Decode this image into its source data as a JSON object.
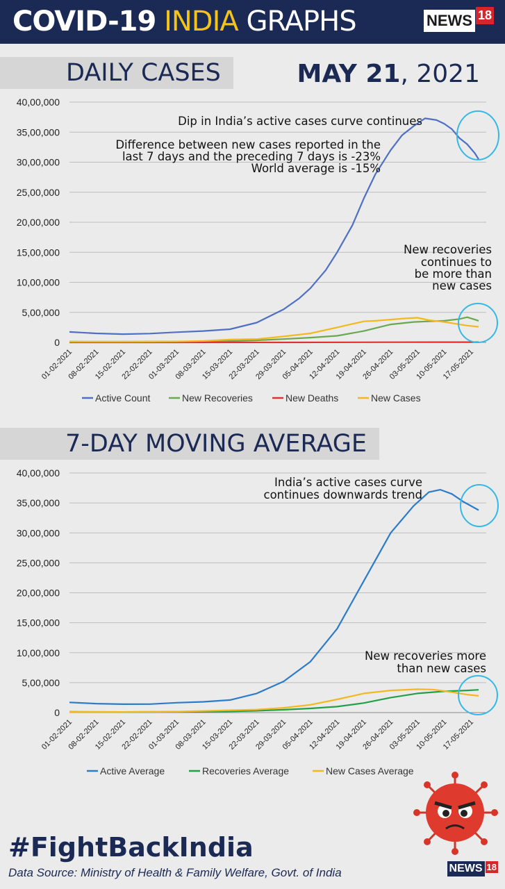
{
  "header": {
    "title_part1": "COVID-19",
    "title_part2": "INDIA",
    "title_part3": "GRAPHS",
    "logo_text": "NEWS",
    "logo_num": "18"
  },
  "date": {
    "bold": "MAY 21",
    "rest": ", 2021"
  },
  "footer": {
    "hashtag": "#FightBackIndia",
    "source": "Data Source:  Ministry of Health & Family Welfare, Govt. of India"
  },
  "colors": {
    "navy": "#1a2a55",
    "yellow": "#f2c318",
    "red": "#d4262b",
    "cyan": "#35b8e6"
  },
  "chart_data": [
    {
      "type": "line",
      "title": "DAILY CASES",
      "ylim": [
        0,
        4000000
      ],
      "yticks": [
        "0",
        "5,00,000",
        "10,00,000",
        "15,00,000",
        "20,00,000",
        "25,00,000",
        "30,00,000",
        "35,00,000",
        "40,00,000"
      ],
      "x_ticks": [
        "01-02-2021",
        "08-02-2021",
        "15-02-2021",
        "22-02-2021",
        "01-03-2021",
        "08-03-2021",
        "15-03-2021",
        "22-03-2021",
        "29-03-2021",
        "05-04-2021",
        "12-04-2021",
        "19-04-2021",
        "26-04-2021",
        "03-05-2021",
        "10-05-2021",
        "17-05-2021"
      ],
      "x_day_range": [
        0,
        109
      ],
      "grid": true,
      "legend": "bottom",
      "series": [
        {
          "name": "Active Count",
          "color": "#4e6fc4",
          "points": [
            [
              0,
              175000
            ],
            [
              7,
              150000
            ],
            [
              14,
              138000
            ],
            [
              21,
              147000
            ],
            [
              28,
              170000
            ],
            [
              35,
              190000
            ],
            [
              42,
              220000
            ],
            [
              49,
              330000
            ],
            [
              56,
              550000
            ],
            [
              60,
              730000
            ],
            [
              63,
              900000
            ],
            [
              67,
              1200000
            ],
            [
              70,
              1500000
            ],
            [
              74,
              1950000
            ],
            [
              77,
              2400000
            ],
            [
              80,
              2800000
            ],
            [
              84,
              3200000
            ],
            [
              87,
              3450000
            ],
            [
              90,
              3600000
            ],
            [
              93,
              3730000
            ],
            [
              96,
              3700000
            ],
            [
              98,
              3640000
            ],
            [
              100,
              3550000
            ],
            [
              102,
              3400000
            ],
            [
              104,
              3300000
            ],
            [
              106,
              3150000
            ],
            [
              107,
              3050000
            ]
          ]
        },
        {
          "name": "New Recoveries",
          "color": "#6aa84f",
          "points": [
            [
              0,
              13000
            ],
            [
              14,
              11000
            ],
            [
              28,
              14000
            ],
            [
              42,
              22000
            ],
            [
              49,
              35000
            ],
            [
              56,
              55000
            ],
            [
              63,
              80000
            ],
            [
              70,
              110000
            ],
            [
              77,
              190000
            ],
            [
              84,
              300000
            ],
            [
              90,
              340000
            ],
            [
              94,
              350000
            ],
            [
              98,
              360000
            ],
            [
              102,
              390000
            ],
            [
              104,
              420000
            ],
            [
              106,
              380000
            ],
            [
              107,
              360000
            ]
          ]
        },
        {
          "name": "New Deaths",
          "color": "#e03030",
          "points": [
            [
              0,
              100
            ],
            [
              28,
              120
            ],
            [
              56,
              500
            ],
            [
              84,
              3500
            ],
            [
              107,
              4200
            ]
          ]
        },
        {
          "name": "New Cases",
          "color": "#f4b81e",
          "points": [
            [
              0,
              11000
            ],
            [
              14,
              11500
            ],
            [
              21,
              13000
            ],
            [
              28,
              15000
            ],
            [
              35,
              24000
            ],
            [
              42,
              47000
            ],
            [
              49,
              55000
            ],
            [
              56,
              100000
            ],
            [
              63,
              150000
            ],
            [
              70,
              250000
            ],
            [
              77,
              350000
            ],
            [
              80,
              360000
            ],
            [
              84,
              380000
            ],
            [
              88,
              400000
            ],
            [
              91,
              410000
            ],
            [
              94,
              370000
            ],
            [
              98,
              340000
            ],
            [
              101,
              310000
            ],
            [
              104,
              280000
            ],
            [
              107,
              260000
            ]
          ]
        }
      ],
      "annotations": [
        "Dip in India’s active cases curve continues",
        "Difference between new cases reported in the",
        "last 7 days and the preceding 7 days is -23%",
        "World average is -15%",
        "New recoveries",
        "continues to",
        "be more than",
        "new cases"
      ]
    },
    {
      "type": "line",
      "title": "7-DAY MOVING AVERAGE",
      "ylim": [
        0,
        4000000
      ],
      "yticks": [
        "0",
        "5,00,000",
        "10,00,000",
        "15,00,000",
        "20,00,000",
        "25,00,000",
        "30,00,000",
        "35,00,000",
        "40,00,000"
      ],
      "x_ticks": [
        "01-02-2021",
        "08-02-2021",
        "15-02-2021",
        "22-02-2021",
        "01-03-2021",
        "08-03-2021",
        "15-03-2021",
        "22-03-2021",
        "29-03-2021",
        "05-04-2021",
        "12-04-2021",
        "19-04-2021",
        "26-04-2021",
        "03-05-2021",
        "10-05-2021",
        "17-05-2021"
      ],
      "x_day_range": [
        0,
        109
      ],
      "grid": true,
      "legend": "bottom",
      "series": [
        {
          "name": "Active Average",
          "color": "#2b7bc9",
          "points": [
            [
              0,
              170000
            ],
            [
              7,
              150000
            ],
            [
              14,
              140000
            ],
            [
              21,
              142000
            ],
            [
              28,
              165000
            ],
            [
              35,
              180000
            ],
            [
              42,
              210000
            ],
            [
              49,
              320000
            ],
            [
              56,
              520000
            ],
            [
              63,
              850000
            ],
            [
              70,
              1400000
            ],
            [
              77,
              2200000
            ],
            [
              84,
              3000000
            ],
            [
              90,
              3450000
            ],
            [
              94,
              3680000
            ],
            [
              97,
              3720000
            ],
            [
              100,
              3650000
            ],
            [
              103,
              3520000
            ],
            [
              107,
              3380000
            ]
          ]
        },
        {
          "name": "Recoveries Average",
          "color": "#22a045",
          "points": [
            [
              0,
              13000
            ],
            [
              14,
              11000
            ],
            [
              28,
              14000
            ],
            [
              42,
              20000
            ],
            [
              49,
              30000
            ],
            [
              56,
              48000
            ],
            [
              63,
              70000
            ],
            [
              70,
              100000
            ],
            [
              77,
              160000
            ],
            [
              84,
              250000
            ],
            [
              91,
              320000
            ],
            [
              98,
              355000
            ],
            [
              104,
              370000
            ],
            [
              107,
              380000
            ]
          ]
        },
        {
          "name": "New Cases Average",
          "color": "#f4b81e",
          "points": [
            [
              0,
              11000
            ],
            [
              14,
              11000
            ],
            [
              28,
              15000
            ],
            [
              42,
              40000
            ],
            [
              49,
              50000
            ],
            [
              56,
              80000
            ],
            [
              63,
              130000
            ],
            [
              70,
              220000
            ],
            [
              77,
              320000
            ],
            [
              84,
              370000
            ],
            [
              91,
              390000
            ],
            [
              95,
              385000
            ],
            [
              98,
              360000
            ],
            [
              101,
              330000
            ],
            [
              104,
              300000
            ],
            [
              107,
              280000
            ]
          ]
        }
      ],
      "annotations": [
        "India’s active cases curve",
        "continues downwards trend",
        "New recoveries  more",
        "than new cases"
      ]
    }
  ]
}
